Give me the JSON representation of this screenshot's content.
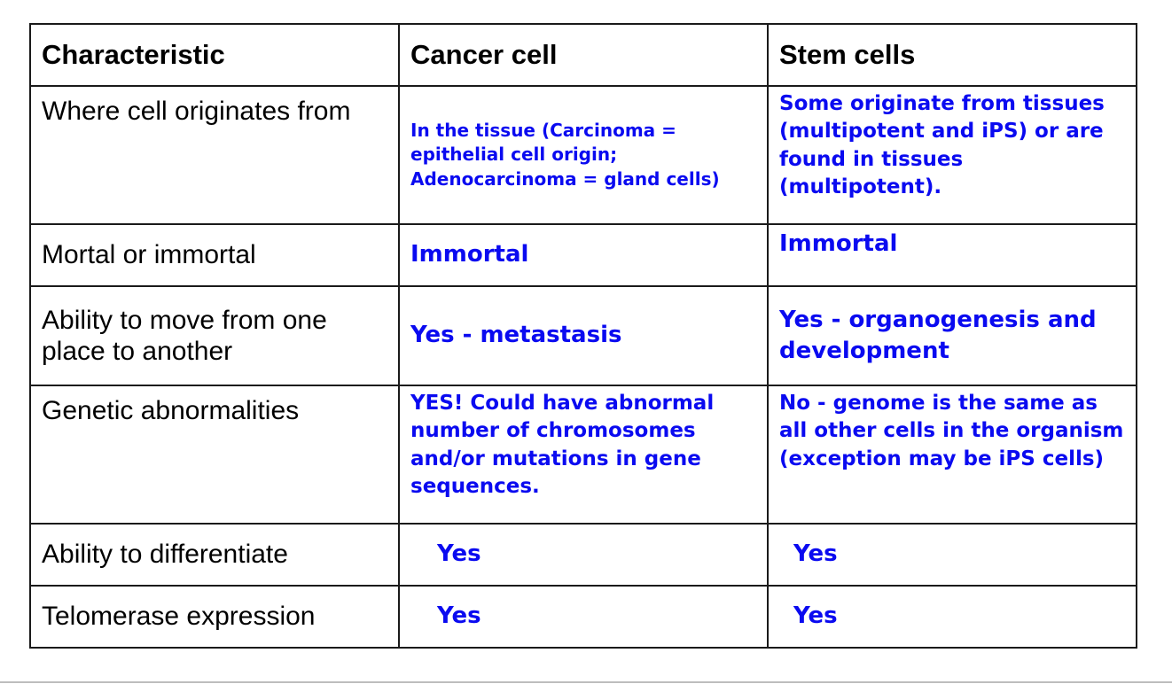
{
  "table": {
    "headers": [
      "Characteristic",
      "Cancer cell",
      "Stem cells"
    ],
    "rows": [
      {
        "characteristic": "Where cell originates from",
        "cancer": "In the tissue (Carcinoma = epithelial cell origin; Adenocarcinoma = gland cells)",
        "stem": "Some originate from tissues (multipotent and iPS) or are found in tissues (multipotent)."
      },
      {
        "characteristic": "Mortal or immortal",
        "cancer": "Immortal",
        "stem": "Immortal"
      },
      {
        "characteristic": "Ability to move from one place to another",
        "cancer": "Yes - metastasis",
        "stem": "Yes - organogenesis and development"
      },
      {
        "characteristic": "Genetic abnormalities",
        "cancer": "YES!  Could have abnormal number of chromosomes and/or mutations in gene sequences.",
        "stem": "No - genome is the same as all other cells in the organism (exception may be iPS cells)"
      },
      {
        "characteristic": "Ability to differentiate",
        "cancer": "Yes",
        "stem": "Yes"
      },
      {
        "characteristic": "Telomerase expression",
        "cancer": "Yes",
        "stem": "Yes"
      }
    ]
  },
  "colors": {
    "answer_text": "#0a0af0",
    "label_text": "#000000",
    "border": "#1a1a1a"
  }
}
